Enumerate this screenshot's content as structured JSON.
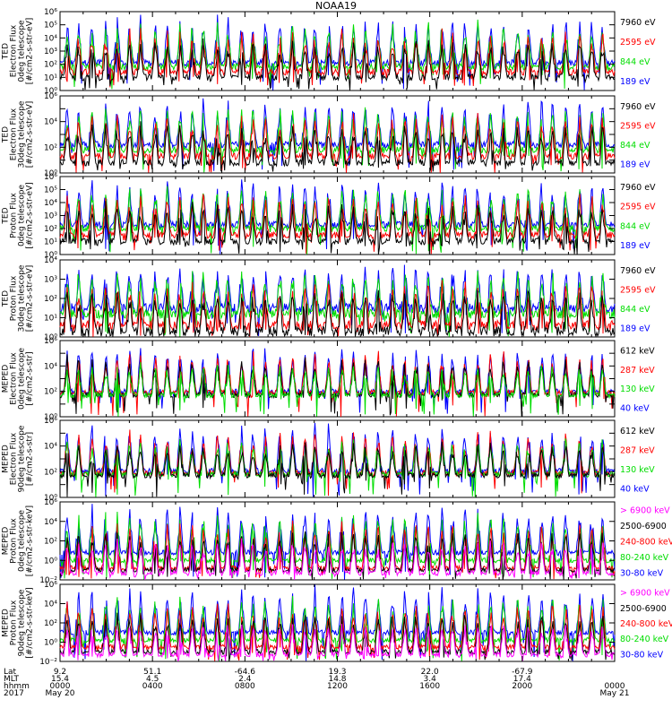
{
  "title": "NOAA19",
  "colors": {
    "blue": "#0000ff",
    "red": "#ff0000",
    "green": "#00dd00",
    "black": "#000000",
    "magenta": "#ff00ff"
  },
  "chart_data": [
    {
      "type": "line",
      "title": "",
      "ylabel": [
        "TED",
        "Electron Flux",
        "0deg telescope",
        "[#/cm2-s-str-eV]"
      ],
      "yticks": [
        "10⁰",
        "10¹",
        "10²",
        "10³",
        "10⁴",
        "10⁵",
        "10⁶"
      ],
      "ylog": [
        0,
        6
      ],
      "series": [
        {
          "name": "7960 eV",
          "color": "black",
          "level": 1.0
        },
        {
          "name": "2595 eV",
          "color": "red",
          "level": 1.4
        },
        {
          "name": "844 eV",
          "color": "green",
          "level": 1.8
        },
        {
          "name": "189 eV",
          "color": "blue",
          "level": 2.1
        }
      ]
    },
    {
      "type": "line",
      "title": "",
      "ylabel": [
        "TED",
        "Electron Flux",
        "30deg telescope",
        "[#/cm2-s-str-eV]"
      ],
      "yticks": [
        "10⁰",
        "",
        "10²",
        "",
        "10⁴",
        "",
        "10⁶"
      ],
      "ylog": [
        0,
        6
      ],
      "series": [
        {
          "name": "7960 eV",
          "color": "black",
          "level": 0.8
        },
        {
          "name": "2595 eV",
          "color": "red",
          "level": 1.3
        },
        {
          "name": "844 eV",
          "color": "green",
          "level": 1.8
        },
        {
          "name": "189 eV",
          "color": "blue",
          "level": 2.2
        }
      ]
    },
    {
      "type": "line",
      "title": "",
      "ylabel": [
        "TED",
        "Proton Flux",
        "0deg telescope",
        "[#/cm2-s-str-eV]"
      ],
      "yticks": [
        "10⁰",
        "10¹",
        "10²",
        "10³",
        "10⁴",
        "10⁵",
        "10⁶"
      ],
      "ylog": [
        0,
        6
      ],
      "series": [
        {
          "name": "7960 eV",
          "color": "black",
          "level": 1.0
        },
        {
          "name": "2595 eV",
          "color": "red",
          "level": 1.5
        },
        {
          "name": "844 eV",
          "color": "green",
          "level": 2.0
        },
        {
          "name": "189 eV",
          "color": "blue",
          "level": 2.3
        }
      ]
    },
    {
      "type": "line",
      "title": "",
      "ylabel": [
        "TED",
        "Proton Flux",
        "30deg telescope",
        "[#/cm2-s-str-eV]"
      ],
      "yticks": [
        "10⁰",
        "10¹",
        "10²",
        "10³",
        "10⁴"
      ],
      "ylog": [
        0,
        4
      ],
      "series": [
        {
          "name": "7960 eV",
          "color": "black",
          "level": 0.3
        },
        {
          "name": "2595 eV",
          "color": "red",
          "level": 0.6
        },
        {
          "name": "844 eV",
          "color": "green",
          "level": 1.2
        },
        {
          "name": "189 eV",
          "color": "blue",
          "level": 1.5
        }
      ]
    },
    {
      "type": "line",
      "title": "",
      "ylabel": [
        "MEPED",
        "Electron Flux",
        "0deg telescope",
        "[#/cm2-s-str]"
      ],
      "yticks": [
        "10⁰",
        "",
        "10²",
        "",
        "10⁴",
        "",
        "10⁶"
      ],
      "ylog": [
        0,
        7
      ],
      "series": [
        {
          "name": "612 keV",
          "color": "black",
          "level": 2.0
        },
        {
          "name": "287 keV",
          "color": "red",
          "level": 2.2
        },
        {
          "name": "130 keV",
          "color": "green",
          "level": 2.0
        },
        {
          "name": "40 keV",
          "color": "blue",
          "level": 2.3
        }
      ]
    },
    {
      "type": "line",
      "title": "",
      "ylabel": [
        "MEPED",
        "Electron Flux",
        "90deg telescope",
        "[#/cm2-s-str]"
      ],
      "yticks": [
        "10⁰",
        "",
        "10²",
        "",
        "10⁴",
        "",
        "10⁶"
      ],
      "ylog": [
        0,
        7
      ],
      "series": [
        {
          "name": "612 keV",
          "color": "black",
          "level": 2.0
        },
        {
          "name": "287 keV",
          "color": "red",
          "level": 2.2
        },
        {
          "name": "130 keV",
          "color": "green",
          "level": 2.1
        },
        {
          "name": "40 keV",
          "color": "blue",
          "level": 2.4
        }
      ]
    },
    {
      "type": "line",
      "title": "",
      "ylabel": [
        "MEPED",
        "Proton Flux",
        "0deg telescope",
        "[#/cm2-s-str-keV]"
      ],
      "yticks": [
        "10⁻²",
        "10⁰",
        "10²",
        "10⁴",
        "10⁶"
      ],
      "ylog": [
        -2,
        6
      ],
      "series": [
        {
          "name": "> 6900 keV",
          "color": "magenta",
          "level": -1.3
        },
        {
          "name": "2500-6900",
          "color": "black",
          "level": -1.0
        },
        {
          "name": "240-800 keV",
          "color": "red",
          "level": -0.8
        },
        {
          "name": "80-240 keV",
          "color": "green",
          "level": 0.0
        },
        {
          "name": "30-80 keV",
          "color": "blue",
          "level": 0.8
        }
      ]
    },
    {
      "type": "line",
      "title": "",
      "ylabel": [
        "MEPED",
        "Proton Flux",
        "90deg telescope",
        "[#/cm2-s-str-keV]"
      ],
      "yticks": [
        "10⁻²",
        "10⁰",
        "10²",
        "10⁴",
        "10⁶"
      ],
      "ylog": [
        -2,
        6
      ],
      "series": [
        {
          "name": "> 6900 keV",
          "color": "magenta",
          "level": -1.3
        },
        {
          "name": "2500-6900",
          "color": "black",
          "level": -1.0
        },
        {
          "name": "240-800 keV",
          "color": "red",
          "level": -0.5
        },
        {
          "name": "80-240 keV",
          "color": "green",
          "level": 0.2
        },
        {
          "name": "30-80 keV",
          "color": "blue",
          "level": 1.0
        }
      ]
    }
  ],
  "xaxis": {
    "row_labels": [
      "Lat",
      "MLT",
      "hhmm",
      "2017"
    ],
    "ticks": [
      {
        "lat": "9.2",
        "mlt": "15.4",
        "hhmm": "0000",
        "date": "May 20",
        "frac": 0.0
      },
      {
        "lat": "51.1",
        "mlt": "4.5",
        "hhmm": "0400",
        "date": "",
        "frac": 0.1667
      },
      {
        "lat": "-64.6",
        "mlt": "2.4",
        "hhmm": "0800",
        "date": "",
        "frac": 0.3333
      },
      {
        "lat": "19.3",
        "mlt": "14.8",
        "hhmm": "1200",
        "date": "",
        "frac": 0.5
      },
      {
        "lat": "22.0",
        "mlt": "3.4",
        "hhmm": "1600",
        "date": "",
        "frac": 0.6667
      },
      {
        "lat": "-67.9",
        "mlt": "17.4",
        "hhmm": "2000",
        "date": "",
        "frac": 0.8333
      },
      {
        "lat": "",
        "mlt": "",
        "hhmm": "0000",
        "date": "May 21",
        "frac": 1.0
      }
    ]
  }
}
